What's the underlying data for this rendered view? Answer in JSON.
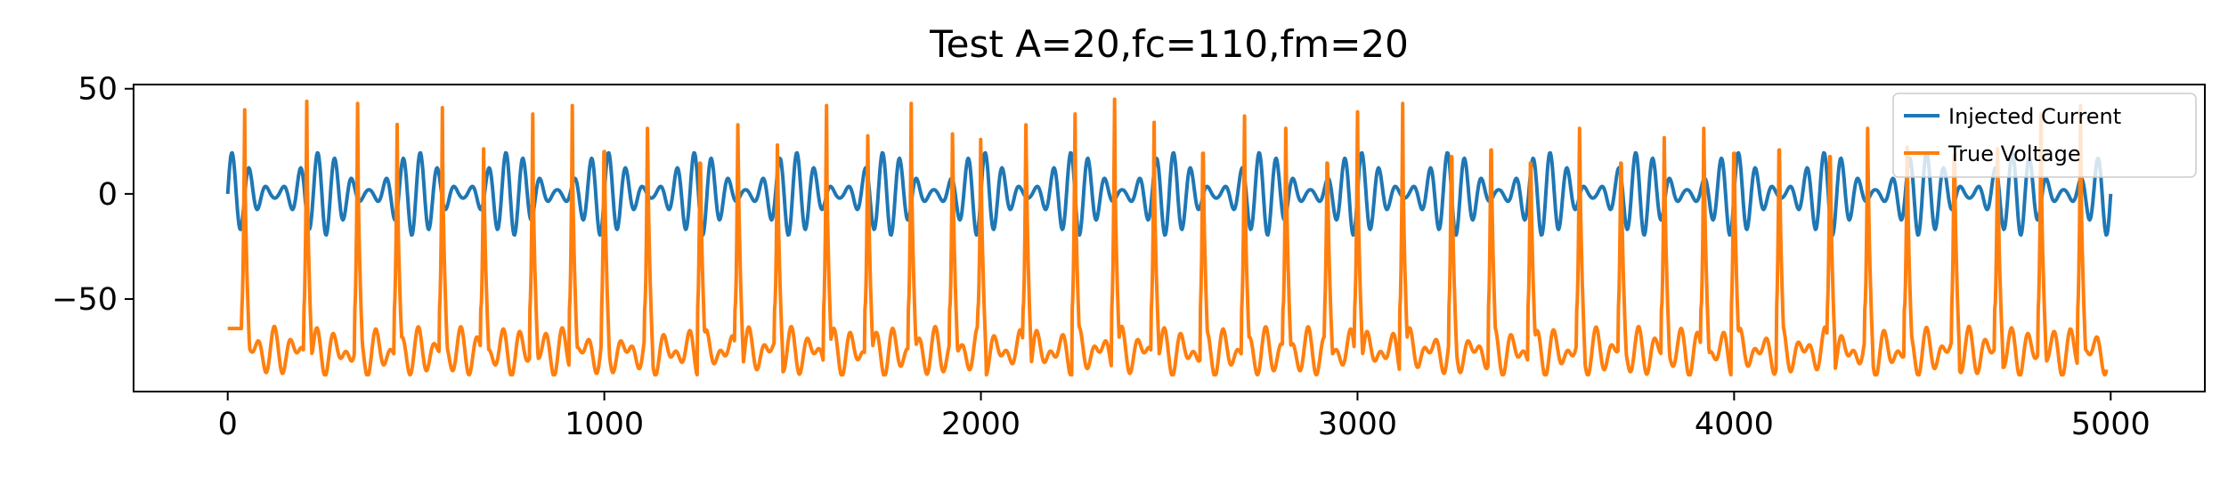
{
  "chart_data": {
    "type": "line",
    "title": "Test A=20,fc=110,fm=20",
    "xlabel": "",
    "ylabel": "",
    "xlim": [
      -250,
      5250
    ],
    "ylim": [
      -94,
      52
    ],
    "xticks": [
      0,
      1000,
      2000,
      3000,
      4000,
      5000
    ],
    "xtick_labels": [
      "0",
      "1000",
      "2000",
      "3000",
      "4000",
      "5000"
    ],
    "yticks": [
      50,
      0,
      -50
    ],
    "ytick_labels": [
      "50",
      "0",
      "−50"
    ],
    "grid": false,
    "legend_position": "top-right",
    "series": [
      {
        "name": "Injected Current",
        "color": "#1f77b4",
        "description_values": {
          "x": [
            0,
            5000
          ],
          "model": "amplitude-modulated sinusoid",
          "amplitude": 20,
          "carrier_frequency": 110,
          "modulation_frequency": 20,
          "y_range": [
            -20,
            20
          ]
        }
      },
      {
        "name": "True Voltage",
        "color": "#ff7f0e",
        "y_range": [
          -86,
          45
        ],
        "resting_level": -75,
        "spike_times": [
          45,
          210,
          345,
          450,
          570,
          680,
          810,
          915,
          1000,
          1115,
          1255,
          1355,
          1460,
          1590,
          1700,
          1815,
          1925,
          2000,
          2120,
          2250,
          2355,
          2460,
          2590,
          2700,
          2810,
          2920,
          3000,
          3120,
          3250,
          3355,
          3460,
          3590,
          3700,
          3815,
          3920,
          4000,
          4120,
          4255,
          4355,
          4460,
          4585,
          4700,
          4815,
          4920
        ],
        "spike_peaks": [
          40,
          44,
          43,
          33,
          41,
          32,
          38,
          42,
          43,
          43,
          36,
          45,
          34,
          42,
          39,
          43,
          40,
          37,
          45,
          38,
          45,
          34,
          42,
          37,
          43,
          36,
          39,
          43,
          40,
          44,
          36,
          43,
          36,
          38,
          43,
          42,
          44,
          40,
          43,
          33,
          41,
          32,
          38,
          42
        ]
      }
    ]
  }
}
